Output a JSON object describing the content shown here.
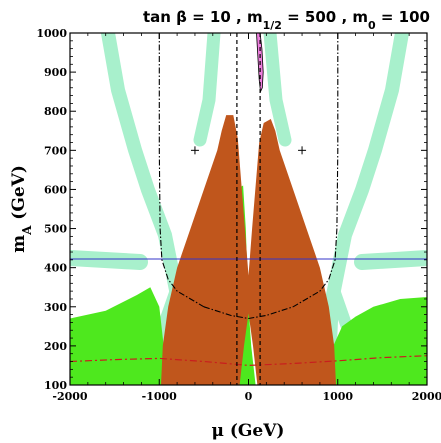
{
  "chart_data": {
    "type": "area",
    "title_parts": [
      {
        "text": "tan β = 10 ,  m",
        "sub": false
      },
      {
        "text": "1/2",
        "sub": true
      },
      {
        "text": " = 500 ,  m",
        "sub": false
      },
      {
        "text": "0",
        "sub": true
      },
      {
        "text": " = 100",
        "sub": false
      }
    ],
    "xlabel": "μ (GeV)",
    "ylabel_main": "m",
    "ylabel_sub": "A",
    "ylabel_tail": " (GeV)",
    "xlim": [
      -2000,
      2000
    ],
    "ylim": [
      100,
      1000
    ],
    "xticks": [
      -2000,
      -1000,
      0,
      1000,
      2000
    ],
    "yticks": [
      100,
      200,
      300,
      400,
      500,
      600,
      700,
      800,
      900,
      1000
    ],
    "colors": {
      "excluded_brown": "#c0561c",
      "wmap_green": "#4ee81e",
      "cosmo_light": "#a8f0cc",
      "pink": "#ee7ede",
      "blue_line": "#3434c8",
      "red_dash": "#c81e1e",
      "black": "#000000"
    },
    "regions": {
      "brown_left": [
        [
          -980,
          100
        ],
        [
          -960,
          200
        ],
        [
          -900,
          300
        ],
        [
          -800,
          400
        ],
        [
          -650,
          500
        ],
        [
          -500,
          600
        ],
        [
          -350,
          700
        ],
        [
          -300,
          750
        ],
        [
          -250,
          790
        ],
        [
          -170,
          790
        ],
        [
          -120,
          730
        ],
        [
          -40,
          500
        ],
        [
          0,
          380
        ],
        [
          10,
          300
        ],
        [
          -50,
          200
        ],
        [
          -100,
          100
        ]
      ],
      "brown_right": [
        [
          980,
          100
        ],
        [
          960,
          200
        ],
        [
          900,
          300
        ],
        [
          800,
          400
        ],
        [
          650,
          500
        ],
        [
          500,
          600
        ],
        [
          350,
          700
        ],
        [
          300,
          750
        ],
        [
          250,
          780
        ],
        [
          170,
          770
        ],
        [
          120,
          720
        ],
        [
          40,
          500
        ],
        [
          0,
          380
        ],
        [
          -10,
          300
        ],
        [
          50,
          200
        ],
        [
          100,
          100
        ]
      ],
      "green_bottom_left": [
        [
          -2000,
          100
        ],
        [
          -2000,
          270
        ],
        [
          -1600,
          290
        ],
        [
          -1250,
          330
        ],
        [
          -1100,
          350
        ],
        [
          -1000,
          300
        ],
        [
          -950,
          200
        ],
        [
          -940,
          100
        ]
      ],
      "green_bottom_right": [
        [
          2000,
          100
        ],
        [
          2000,
          325
        ],
        [
          1700,
          320
        ],
        [
          1400,
          300
        ],
        [
          1200,
          275
        ],
        [
          1050,
          250
        ],
        [
          950,
          200
        ],
        [
          940,
          100
        ]
      ],
      "green_center": [
        [
          -150,
          100
        ],
        [
          -200,
          300
        ],
        [
          -150,
          450
        ],
        [
          -100,
          605
        ],
        [
          -60,
          610
        ],
        [
          -30,
          500
        ],
        [
          0,
          300
        ],
        [
          30,
          200
        ],
        [
          80,
          100
        ]
      ],
      "pink_top": [
        [
          130,
          1000
        ],
        [
          150,
          960
        ],
        [
          165,
          900
        ],
        [
          155,
          860
        ],
        [
          135,
          850
        ],
        [
          120,
          880
        ],
        [
          100,
          960
        ],
        [
          90,
          1000
        ]
      ]
    },
    "lines": {
      "blue_horizontal_y": 422,
      "red_dash": [
        [
          -2000,
          160
        ],
        [
          -1500,
          165
        ],
        [
          -1000,
          168
        ],
        [
          -500,
          160
        ],
        [
          0,
          150
        ],
        [
          500,
          155
        ],
        [
          1000,
          162
        ],
        [
          1500,
          170
        ],
        [
          2000,
          175
        ]
      ],
      "dashdot_left": [
        [
          -1000,
          1000
        ],
        [
          -1000,
          700
        ],
        [
          -990,
          500
        ],
        [
          -970,
          420
        ],
        [
          -900,
          370
        ],
        [
          -800,
          340
        ],
        [
          -500,
          300
        ]
      ],
      "dashdot_right": [
        [
          1000,
          1000
        ],
        [
          1000,
          700
        ],
        [
          990,
          500
        ],
        [
          970,
          420
        ],
        [
          900,
          370
        ],
        [
          800,
          340
        ],
        [
          500,
          300
        ]
      ],
      "dashdot_bottom": [
        [
          -500,
          300
        ],
        [
          -200,
          278
        ],
        [
          0,
          270
        ],
        [
          200,
          278
        ],
        [
          500,
          300
        ]
      ],
      "dashed_left_x": -130,
      "dashed_right_x": 130
    },
    "markers": [
      {
        "x": -600,
        "y": 700
      },
      {
        "x": 600,
        "y": 700
      }
    ]
  }
}
